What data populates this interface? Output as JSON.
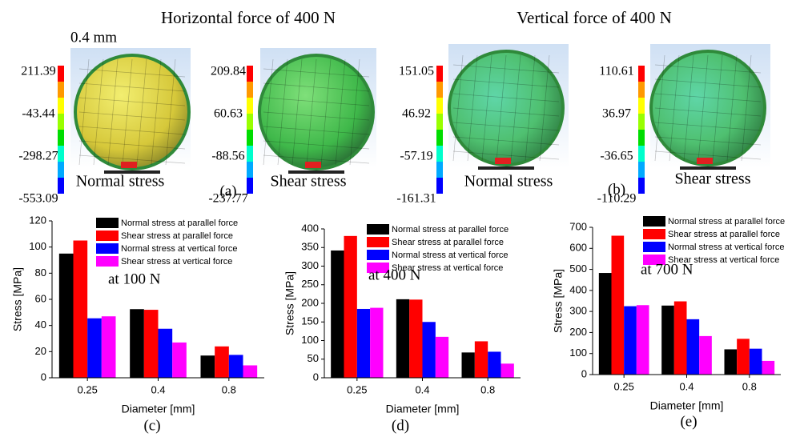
{
  "figure": {
    "titles": [
      "Horizontal force of 400 N",
      "Vertical force of 400 N"
    ],
    "diameter": "0.4 mm",
    "panels": [
      {
        "scale": [
          211.39,
          -43.44,
          -298.27,
          -553.09
        ],
        "caption": "Normal stress"
      },
      {
        "scale": [
          209.84,
          60.63,
          -88.56,
          -237.77
        ],
        "caption": "Shear stress"
      },
      {
        "scale": [
          151.05,
          46.92,
          -57.19,
          -161.31
        ],
        "caption": "Normal stress"
      },
      {
        "scale": [
          110.61,
          36.97,
          -36.65,
          -110.29
        ],
        "caption": "Shear stress"
      }
    ],
    "panel_labels": [
      "(a)",
      "(b)"
    ]
  },
  "chart_data": [
    {
      "type": "bar",
      "panel_label": "(c)",
      "annotation": "at 100 N",
      "x_label": "Diameter [mm]",
      "y_label": "Stress [MPa]",
      "categories": [
        "0.25",
        "0.4",
        "0.8"
      ],
      "ylim": [
        0,
        120
      ],
      "yticks": [
        0,
        20,
        40,
        60,
        80,
        100,
        120
      ],
      "series": [
        {
          "name": "Normal stress at parallel force",
          "color": "#000000",
          "values": [
            95,
            52.5,
            17
          ]
        },
        {
          "name": "Shear stress at parallel force",
          "color": "#ff0000",
          "values": [
            105,
            52,
            24
          ]
        },
        {
          "name": "Normal stress at vertical force",
          "color": "#0000ff",
          "values": [
            45.5,
            37.5,
            17.5
          ]
        },
        {
          "name": "Shear stress at vertical force",
          "color": "#ff00ff",
          "values": [
            47,
            27,
            9.5
          ]
        }
      ]
    },
    {
      "type": "bar",
      "panel_label": "(d)",
      "annotation": "at 400 N",
      "x_label": "Diameter [mm]",
      "y_label": "Stress [MPa]",
      "categories": [
        "0.25",
        "0.4",
        "0.8"
      ],
      "ylim": [
        0,
        400
      ],
      "yticks": [
        0,
        50,
        100,
        150,
        200,
        250,
        300,
        350,
        400
      ],
      "series": [
        {
          "name": "Normal stress at parallel force",
          "color": "#000000",
          "values": [
            342,
            211,
            68
          ]
        },
        {
          "name": "Shear stress at parallel force",
          "color": "#ff0000",
          "values": [
            381,
            210,
            98
          ]
        },
        {
          "name": "Normal stress at vertical force",
          "color": "#0000ff",
          "values": [
            185,
            150,
            70
          ]
        },
        {
          "name": "Shear stress at vertical force",
          "color": "#ff00ff",
          "values": [
            188,
            110,
            38
          ]
        }
      ]
    },
    {
      "type": "bar",
      "panel_label": "(e)",
      "annotation": "at 700 N",
      "x_label": "Diameter [mm]",
      "y_label": "Stress [MPa]",
      "categories": [
        "0.25",
        "0.4",
        "0.8"
      ],
      "ylim": [
        0,
        700
      ],
      "yticks": [
        0,
        100,
        200,
        300,
        400,
        500,
        600,
        700
      ],
      "series": [
        {
          "name": "Normal stress at parallel force",
          "color": "#000000",
          "values": [
            483,
            328,
            120
          ]
        },
        {
          "name": "Shear stress at parallel force",
          "color": "#ff0000",
          "values": [
            660,
            348,
            170
          ]
        },
        {
          "name": "Normal stress at vertical force",
          "color": "#0000ff",
          "values": [
            325,
            263,
            123
          ]
        },
        {
          "name": "Shear stress at vertical force",
          "color": "#ff00ff",
          "values": [
            330,
            183,
            65
          ]
        }
      ]
    }
  ]
}
